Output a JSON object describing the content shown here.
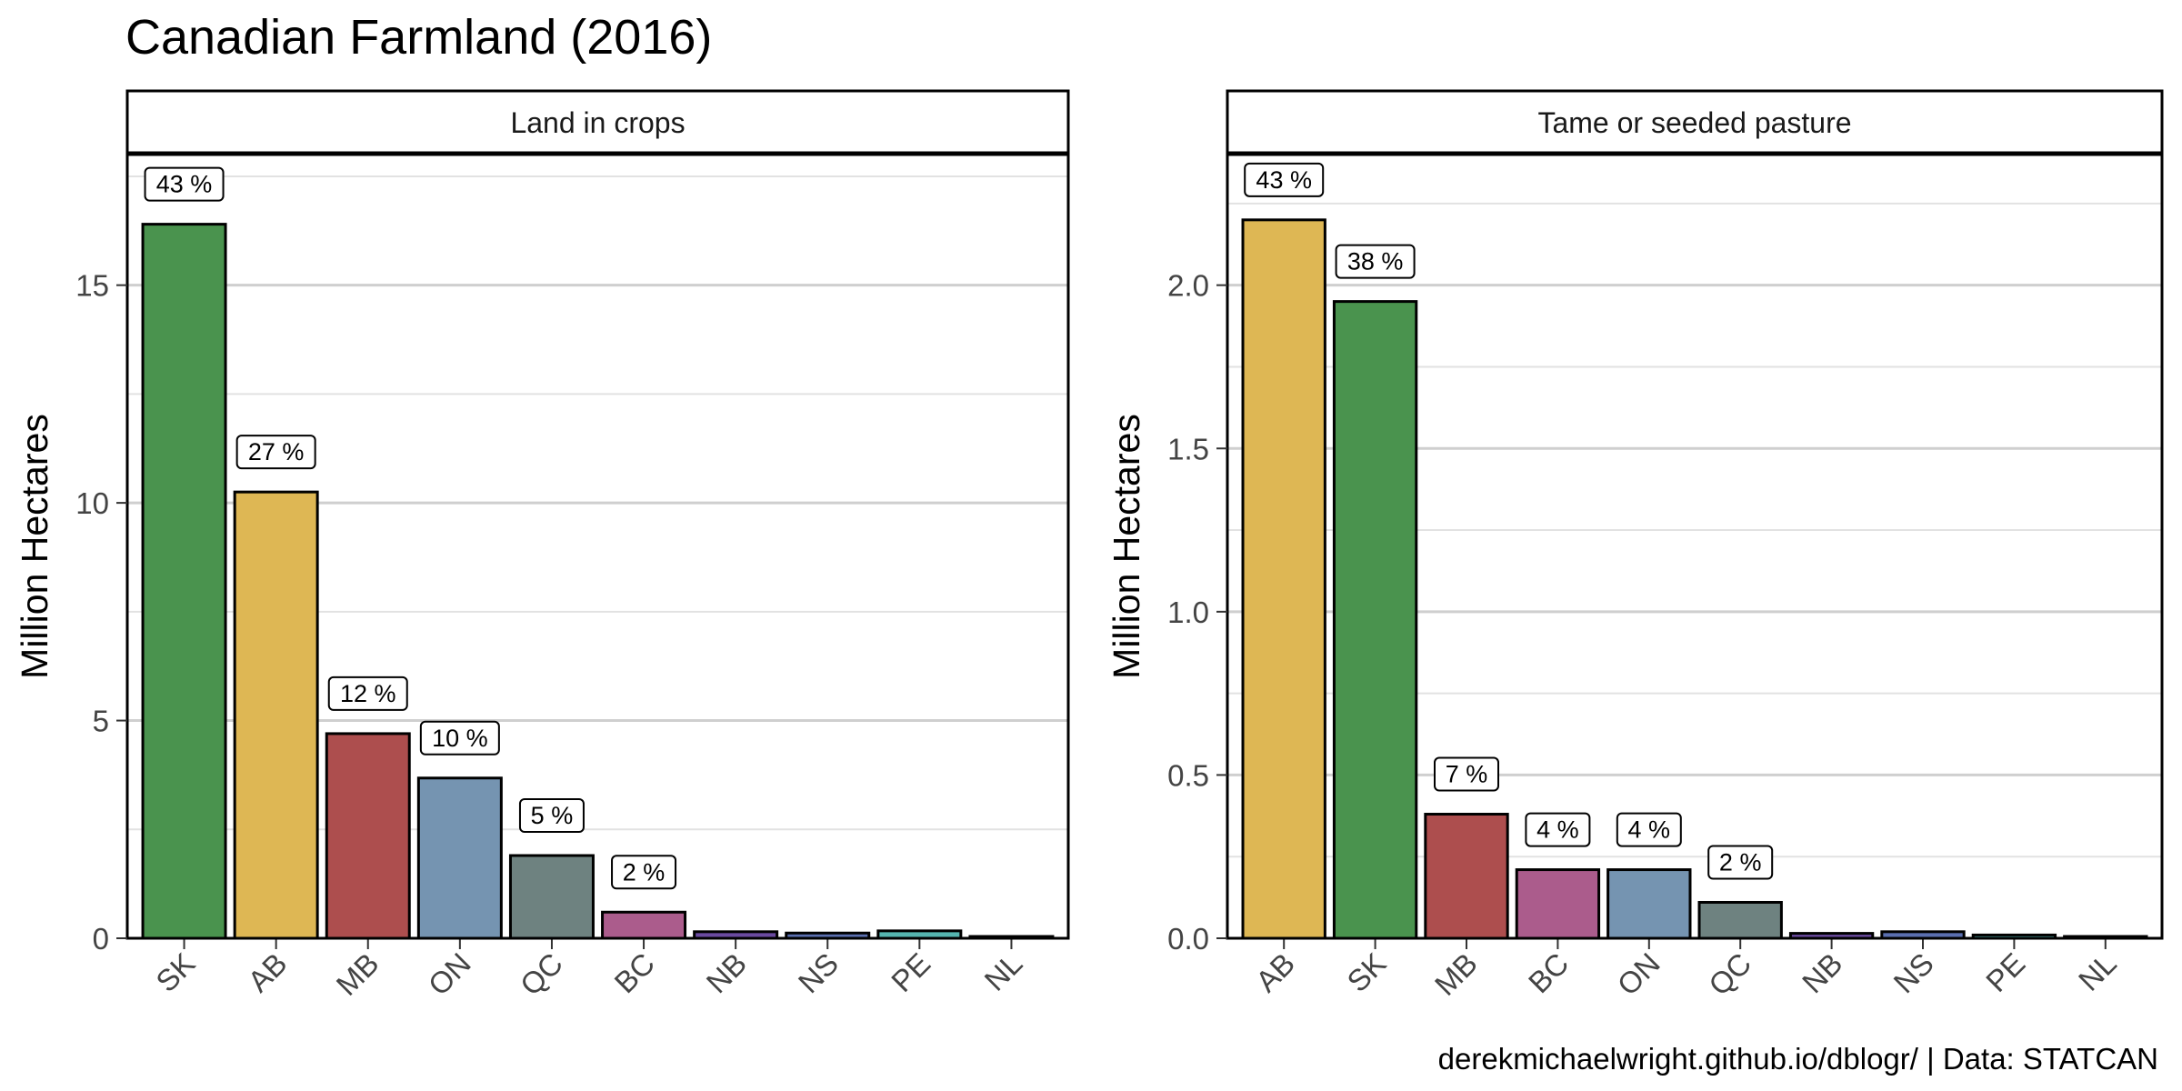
{
  "title": "Canadian Farmland (2016)",
  "caption": "derekmichaelwright.github.io/dblogr/ | Data: STATCAN",
  "colors": {
    "SK": "#4a934e",
    "AB": "#deb754",
    "MB": "#ad4e4e",
    "ON": "#7594b1",
    "QC": "#6e8280",
    "BC": "#ab5c8c",
    "NB": "#6a4aa0",
    "NS": "#5a6fb0",
    "PE": "#55b5b0",
    "NL": "#2b2b2b"
  },
  "chart_data": [
    {
      "type": "bar",
      "facet": "Land in crops",
      "ylabel": "Million Hectares",
      "ylim": [
        0,
        18
      ],
      "yticks": [
        0,
        5,
        10,
        15
      ],
      "ytick_labels": [
        "0",
        "5",
        "10",
        "15"
      ],
      "grid": true,
      "categories": [
        "SK",
        "AB",
        "MB",
        "ON",
        "QC",
        "BC",
        "NB",
        "NS",
        "PE",
        "NL"
      ],
      "values": [
        16.4,
        10.25,
        4.7,
        3.68,
        1.9,
        0.6,
        0.15,
        0.12,
        0.17,
        0.02
      ],
      "labels": [
        "43 %",
        "27 %",
        "12 %",
        "10 %",
        "5 %",
        "2 %",
        "",
        "",
        "",
        ""
      ]
    },
    {
      "type": "bar",
      "facet": "Tame or seeded pasture",
      "ylabel": "Million Hectares",
      "ylim": [
        0,
        2.4
      ],
      "yticks": [
        0,
        0.5,
        1,
        1.5,
        2
      ],
      "ytick_labels": [
        "0.0",
        "0.5",
        "1.0",
        "1.5",
        "2.0"
      ],
      "grid": true,
      "categories": [
        "AB",
        "SK",
        "MB",
        "BC",
        "ON",
        "QC",
        "NB",
        "NS",
        "PE",
        "NL"
      ],
      "values": [
        2.2,
        1.95,
        0.38,
        0.21,
        0.21,
        0.11,
        0.015,
        0.02,
        0.01,
        0.003
      ],
      "labels": [
        "43 %",
        "38 %",
        "7 %",
        "4 %",
        "4 %",
        "2 %",
        "",
        "",
        "",
        ""
      ]
    }
  ]
}
